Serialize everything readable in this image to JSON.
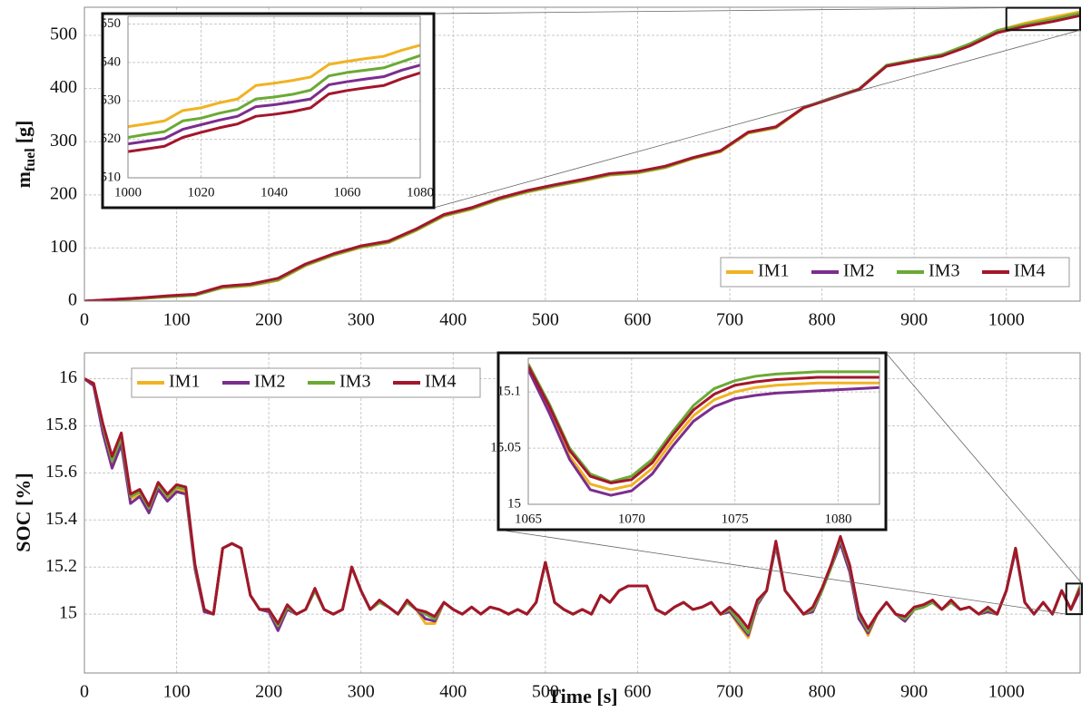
{
  "chart_data": [
    {
      "type": "line",
      "ylabel": "m",
      "ylabel_sub": "fuel",
      "ylabel_unit": "[g]",
      "x": [
        0,
        30,
        60,
        90,
        120,
        150,
        180,
        210,
        240,
        270,
        300,
        330,
        360,
        390,
        420,
        450,
        480,
        510,
        540,
        570,
        600,
        630,
        660,
        690,
        720,
        750,
        780,
        810,
        840,
        870,
        900,
        930,
        960,
        990,
        1020,
        1050,
        1080
      ],
      "series": [
        {
          "name": "IM1",
          "color": "#f0b323",
          "values": [
            0,
            2,
            5,
            8,
            11,
            25,
            29,
            39,
            67,
            86,
            101,
            110,
            133,
            160,
            173,
            191,
            205,
            216,
            226,
            237,
            241,
            251,
            268,
            281,
            316,
            326,
            363,
            381,
            398,
            443,
            453,
            463,
            483,
            509,
            523,
            534,
            544.5
          ]
        },
        {
          "name": "IM2",
          "color": "#7b2d8e",
          "values": [
            0,
            3,
            6,
            9,
            12,
            27,
            31,
            42,
            69,
            88,
            103,
            112,
            135,
            162,
            175,
            193,
            207,
            218,
            228,
            239,
            243,
            253,
            270,
            283,
            318,
            328,
            364,
            382,
            399,
            443,
            453,
            462,
            482,
            507,
            519,
            528,
            539.3
          ]
        },
        {
          "name": "IM3",
          "color": "#6aaa35",
          "values": [
            0,
            2,
            5,
            8,
            11,
            26,
            30,
            40,
            68,
            87,
            102,
            111,
            134,
            161,
            174,
            192,
            206,
            217,
            227,
            238,
            242,
            252,
            269,
            282,
            317,
            327,
            364,
            382,
            399,
            444,
            454,
            464,
            484,
            509,
            520,
            530,
            541.8
          ]
        },
        {
          "name": "IM4",
          "color": "#a3162c",
          "values": [
            0,
            3,
            6,
            10,
            13,
            28,
            32,
            43,
            70,
            89,
            104,
            113,
            136,
            163,
            176,
            194,
            208,
            219,
            229,
            240,
            244,
            254,
            270,
            283,
            318,
            328,
            364,
            381,
            398,
            442,
            452,
            461,
            480,
            505,
            517,
            526,
            537.3
          ]
        }
      ],
      "xlim": [
        0,
        1080
      ],
      "xticks": [
        0,
        100,
        200,
        300,
        400,
        500,
        600,
        700,
        800,
        900,
        1000
      ],
      "ylim": [
        0,
        553
      ],
      "yticks": [
        0,
        100,
        200,
        300,
        400,
        500
      ],
      "grid": true,
      "legend": "lower right"
    },
    {
      "type": "line",
      "x": [
        1000,
        1005,
        1010,
        1015,
        1020,
        1025,
        1030,
        1035,
        1040,
        1045,
        1050,
        1055,
        1060,
        1065,
        1070,
        1075,
        1080
      ],
      "series": [
        {
          "name": "IM1",
          "color": "#f0b323",
          "values": [
            523.3,
            524,
            524.8,
            527.5,
            528.2,
            529.5,
            530.5,
            534,
            534.6,
            535.3,
            536.2,
            539.5,
            540.3,
            541,
            541.6,
            543.2,
            544.5
          ]
        },
        {
          "name": "IM2",
          "color": "#7b2d8e",
          "values": [
            518.8,
            519.5,
            520.2,
            522.6,
            523.8,
            525,
            526,
            528.5,
            529,
            529.7,
            530.5,
            534.2,
            535,
            535.7,
            536.3,
            538,
            539.3
          ]
        },
        {
          "name": "IM3",
          "color": "#6aaa35",
          "values": [
            520.5,
            521.3,
            522,
            524.8,
            525.5,
            526.8,
            527.8,
            530.5,
            531,
            531.7,
            532.8,
            536.5,
            537.4,
            538,
            538.6,
            540.2,
            541.8
          ]
        },
        {
          "name": "IM4",
          "color": "#a3162c",
          "values": [
            516.8,
            517.5,
            518.2,
            520.5,
            521.8,
            523,
            524,
            526,
            526.5,
            527.2,
            528.2,
            531.8,
            532.7,
            533.4,
            534,
            535.8,
            537.3
          ]
        }
      ],
      "xlim": [
        1000,
        1080
      ],
      "xticks": [
        1000,
        1020,
        1040,
        1060,
        1080
      ],
      "ylim": [
        510,
        552
      ],
      "yticks": [
        510,
        520,
        530,
        540,
        550
      ],
      "grid": true
    },
    {
      "type": "line",
      "ylabel": "SOC [%]",
      "xlabel": "Time [s]",
      "x": [
        0,
        10,
        20,
        30,
        40,
        50,
        60,
        70,
        80,
        90,
        100,
        110,
        120,
        130,
        140,
        150,
        160,
        170,
        180,
        190,
        200,
        210,
        220,
        230,
        240,
        250,
        260,
        270,
        280,
        290,
        300,
        310,
        320,
        330,
        340,
        350,
        360,
        370,
        380,
        390,
        400,
        410,
        420,
        430,
        440,
        450,
        460,
        470,
        480,
        490,
        500,
        510,
        520,
        530,
        540,
        550,
        560,
        570,
        580,
        590,
        600,
        610,
        620,
        630,
        640,
        650,
        660,
        670,
        680,
        690,
        700,
        710,
        720,
        730,
        740,
        750,
        760,
        770,
        780,
        790,
        800,
        810,
        820,
        830,
        840,
        850,
        860,
        870,
        880,
        890,
        900,
        910,
        920,
        930,
        940,
        950,
        960,
        970,
        980,
        990,
        1000,
        1010,
        1020,
        1030,
        1040,
        1050,
        1060,
        1070,
        1080
      ],
      "series": [
        {
          "name": "IM1",
          "color": "#f0b323",
          "values": [
            16,
            15.98,
            15.79,
            15.64,
            15.74,
            15.49,
            15.51,
            15.44,
            15.54,
            15.49,
            15.53,
            15.52,
            15.2,
            15.02,
            15,
            15.28,
            15.3,
            15.28,
            15.08,
            15.02,
            15.02,
            14.94,
            15.03,
            15,
            15.02,
            15.1,
            15.02,
            15,
            15.02,
            15.2,
            15.1,
            15.02,
            15.05,
            15.03,
            15,
            15.05,
            15.02,
            14.96,
            14.96,
            15.05,
            15.02,
            15,
            15.03,
            15,
            15.03,
            15.02,
            15,
            15.02,
            15,
            15.05,
            15.22,
            15.05,
            15.02,
            15,
            15.02,
            15,
            15.08,
            15.05,
            15.1,
            15.12,
            15.12,
            15.12,
            15.02,
            15,
            15.03,
            15.05,
            15.02,
            15.03,
            15.05,
            15,
            15.01,
            14.95,
            14.9,
            15.04,
            15.1,
            15.3,
            15.1,
            15.05,
            15,
            15.01,
            15.1,
            15.2,
            15.31,
            15.19,
            14.99,
            14.91,
            15,
            15.05,
            15,
            14.97,
            15.02,
            15.03,
            15.05,
            15.02,
            15.05,
            15.02,
            15.03,
            15,
            15.01,
            15,
            15.1,
            15.28,
            15.05,
            15,
            15.05,
            15,
            15.1,
            15.02,
            15.11
          ]
        },
        {
          "name": "IM2",
          "color": "#7b2d8e",
          "values": [
            16,
            15.97,
            15.77,
            15.62,
            15.72,
            15.47,
            15.5,
            15.43,
            15.53,
            15.48,
            15.52,
            15.51,
            15.19,
            15.01,
            15,
            15.28,
            15.3,
            15.28,
            15.08,
            15.02,
            15.01,
            14.93,
            15.02,
            15,
            15.02,
            15.1,
            15.02,
            15,
            15.02,
            15.2,
            15.1,
            15.02,
            15.05,
            15.03,
            15,
            15.05,
            15.02,
            14.98,
            14.97,
            15.05,
            15.02,
            15,
            15.03,
            15,
            15.03,
            15.02,
            15,
            15.02,
            15,
            15.05,
            15.22,
            15.05,
            15.02,
            15,
            15.02,
            15,
            15.08,
            15.05,
            15.1,
            15.12,
            15.12,
            15.12,
            15.02,
            15,
            15.03,
            15.05,
            15.02,
            15.03,
            15.05,
            15,
            15.01,
            14.96,
            14.91,
            15.04,
            15.1,
            15.29,
            15.1,
            15.05,
            15,
            15.01,
            15.1,
            15.2,
            15.3,
            15.18,
            14.98,
            14.92,
            15,
            15.05,
            15,
            14.97,
            15.02,
            15.03,
            15.05,
            15.02,
            15.05,
            15.02,
            15.03,
            15,
            15.01,
            15,
            15.1,
            15.27,
            15.05,
            15,
            15.05,
            15,
            15.1,
            15.02,
            15.1
          ]
        },
        {
          "name": "IM3",
          "color": "#6aaa35",
          "values": [
            16,
            15.98,
            15.8,
            15.65,
            15.75,
            15.5,
            15.52,
            15.45,
            15.55,
            15.5,
            15.54,
            15.53,
            15.2,
            15.02,
            15,
            15.28,
            15.3,
            15.28,
            15.08,
            15.02,
            15.02,
            14.95,
            15.03,
            15,
            15.02,
            15.1,
            15.02,
            15,
            15.02,
            15.2,
            15.1,
            15.02,
            15.05,
            15.03,
            15,
            15.05,
            15.02,
            15,
            14.98,
            15.05,
            15.02,
            15,
            15.03,
            15,
            15.03,
            15.02,
            15,
            15.02,
            15,
            15.05,
            15.22,
            15.05,
            15.02,
            15,
            15.02,
            15,
            15.08,
            15.05,
            15.1,
            15.12,
            15.12,
            15.12,
            15.02,
            15,
            15.03,
            15.05,
            15.02,
            15.03,
            15.05,
            15,
            15.02,
            14.97,
            14.92,
            15.05,
            15.1,
            15.3,
            15.1,
            15.05,
            15,
            15.02,
            15.1,
            15.2,
            15.32,
            15.2,
            15,
            14.93,
            15,
            15.05,
            15,
            14.98,
            15.02,
            15.03,
            15.05,
            15.02,
            15.05,
            15.02,
            15.03,
            15,
            15.02,
            15,
            15.1,
            15.28,
            15.05,
            15,
            15.05,
            15,
            15.1,
            15.02,
            15.12
          ]
        },
        {
          "name": "IM4",
          "color": "#a3162c",
          "values": [
            16,
            15.98,
            15.81,
            15.67,
            15.77,
            15.51,
            15.53,
            15.46,
            15.56,
            15.51,
            15.55,
            15.54,
            15.21,
            15.02,
            15,
            15.28,
            15.3,
            15.28,
            15.08,
            15.02,
            15.02,
            14.96,
            15.04,
            15,
            15.02,
            15.11,
            15.02,
            15,
            15.02,
            15.2,
            15.1,
            15.02,
            15.06,
            15.03,
            15,
            15.06,
            15.02,
            15.01,
            14.99,
            15.05,
            15.02,
            15,
            15.03,
            15,
            15.03,
            15.02,
            15,
            15.02,
            15,
            15.05,
            15.22,
            15.05,
            15.02,
            15,
            15.02,
            15,
            15.08,
            15.05,
            15.1,
            15.12,
            15.12,
            15.12,
            15.02,
            15,
            15.03,
            15.05,
            15.02,
            15.03,
            15.05,
            15,
            15.03,
            14.99,
            14.94,
            15.06,
            15.1,
            15.31,
            15.1,
            15.05,
            15,
            15.03,
            15.11,
            15.21,
            15.33,
            15.21,
            15.01,
            14.94,
            15,
            15.05,
            15,
            14.99,
            15.03,
            15.04,
            15.06,
            15.02,
            15.06,
            15.02,
            15.03,
            15,
            15.03,
            15,
            15.1,
            15.28,
            15.05,
            15,
            15.05,
            15,
            15.1,
            15.02,
            15.11
          ]
        }
      ],
      "xlim": [
        0,
        1080
      ],
      "xticks": [
        0,
        100,
        200,
        300,
        400,
        500,
        600,
        700,
        800,
        900,
        1000
      ],
      "ylim": [
        14.75,
        16.11
      ],
      "yticks": [
        15,
        15.2,
        15.4,
        15.6,
        15.8,
        16
      ],
      "grid": true,
      "legend": "upper left"
    },
    {
      "type": "line",
      "x": [
        1065,
        1066,
        1067,
        1068,
        1069,
        1070,
        1071,
        1072,
        1073,
        1074,
        1075,
        1076,
        1077,
        1078,
        1079,
        1080,
        1081,
        1082
      ],
      "series": [
        {
          "name": "IM1",
          "color": "#f0b323",
          "values": [
            15.12,
            15.084,
            15.043,
            15.018,
            15.013,
            15.017,
            15.032,
            15.057,
            15.079,
            15.093,
            15.1,
            15.104,
            15.106,
            15.107,
            15.108,
            15.108,
            15.108,
            15.108
          ]
        },
        {
          "name": "IM2",
          "color": "#7b2d8e",
          "values": [
            15.12,
            15.082,
            15.04,
            15.013,
            15.008,
            15.012,
            15.027,
            15.052,
            15.074,
            15.087,
            15.094,
            15.097,
            15.099,
            15.1,
            15.101,
            15.102,
            15.103,
            15.104
          ]
        },
        {
          "name": "IM3",
          "color": "#6aaa35",
          "values": [
            15.125,
            15.09,
            15.05,
            15.027,
            15.02,
            15.025,
            15.04,
            15.065,
            15.088,
            15.103,
            15.11,
            15.114,
            15.116,
            15.117,
            15.118,
            15.118,
            15.118,
            15.118
          ]
        },
        {
          "name": "IM4",
          "color": "#a3162c",
          "values": [
            15.123,
            15.088,
            15.048,
            15.025,
            15.019,
            15.022,
            15.037,
            15.062,
            15.084,
            15.098,
            15.106,
            15.109,
            15.111,
            15.112,
            15.113,
            15.113,
            15.113,
            15.113
          ]
        }
      ],
      "xlim": [
        1065,
        1082
      ],
      "xticks": [
        1065,
        1070,
        1075,
        1080
      ],
      "ylim": [
        15,
        15.13
      ],
      "yticks": [
        15,
        15.05,
        15.1
      ],
      "grid": true
    }
  ]
}
